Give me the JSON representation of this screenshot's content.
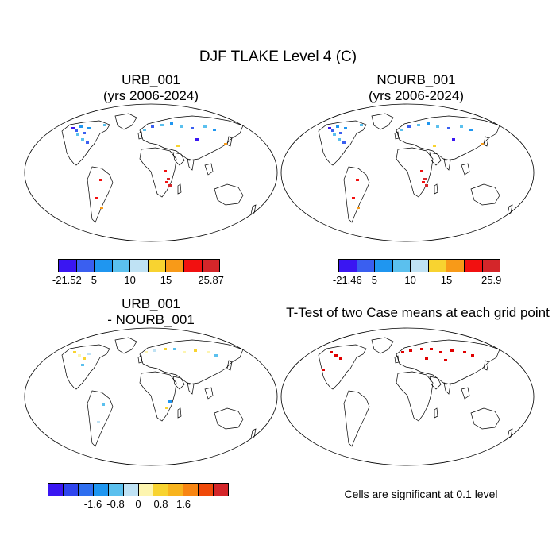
{
  "title": "DJF TLAKE Level 4 (C)",
  "panels": [
    {
      "title_line1": "URB_001",
      "title_line2": "(yrs 2006-2024)"
    },
    {
      "title_line1": "NOURB_001",
      "title_line2": "(yrs 2006-2024)"
    },
    {
      "title_line1": "URB_001",
      "title_line2": "- NOURB_001"
    },
    {
      "title_line1": "T-Test of two Case means at each grid point"
    }
  ],
  "colorbars": [
    {
      "colors": [
        "#3a16f2",
        "#3a5ff0",
        "#1f96f0",
        "#5bc0ee",
        "#bfe2f4",
        "#f8d330",
        "#f89a18",
        "#f21010",
        "#d4262a"
      ],
      "ticks": [
        "-21.52",
        "5",
        "10",
        "15",
        "25.87"
      ]
    },
    {
      "colors": [
        "#3a16f2",
        "#3a5ff0",
        "#1f96f0",
        "#5bc0ee",
        "#bfe2f4",
        "#f8d330",
        "#f89a18",
        "#f21010",
        "#d4262a"
      ],
      "ticks": [
        "-21.46",
        "5",
        "10",
        "15",
        "25.9"
      ]
    },
    {
      "colors": [
        "#3a16f2",
        "#2f45ee",
        "#2f6ff0",
        "#1f96f0",
        "#5bc0ee",
        "#bfe2f4",
        "#fdf5b0",
        "#f8d330",
        "#f8b41e",
        "#f88512",
        "#f04a0a",
        "#d4262a"
      ],
      "ticks": [
        "-1.6",
        "-0.8",
        "0",
        "0.8",
        "1.6"
      ]
    }
  ],
  "significance_note": "Cells are significant at 0.1 level",
  "colors": {
    "significance": "#e00000"
  }
}
